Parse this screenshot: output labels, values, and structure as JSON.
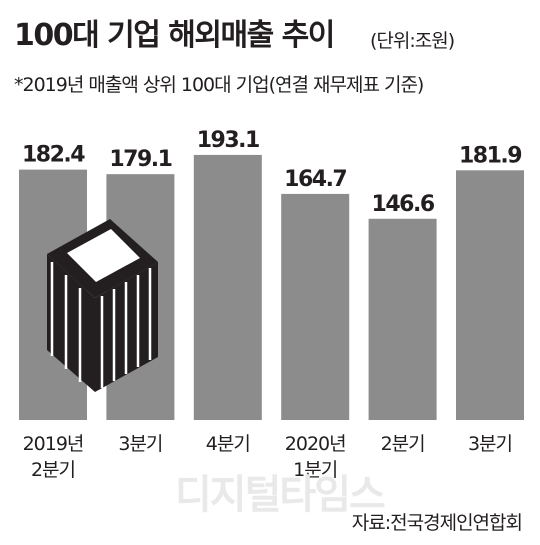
{
  "header": {
    "title": "100대 기업 해외매출 추이",
    "unit": "(단위:조원)",
    "subtitle": "*2019년 매출액 상위 100대 기업(연결 재무제표 기준)"
  },
  "footer": {
    "source": "자료:전국경제인연합회",
    "watermark": "디지털타임스"
  },
  "colors": {
    "bar": "#8c8c8c",
    "text": "#231f20",
    "icon_dark": "#231f20",
    "icon_light": "#ffffff"
  },
  "chart_data": {
    "type": "bar",
    "categories": [
      [
        "2019년",
        "2분기"
      ],
      [
        "3분기"
      ],
      [
        "4분기"
      ],
      [
        "2020년",
        "1분기"
      ],
      [
        "2분기"
      ],
      [
        "3분기"
      ]
    ],
    "values": [
      182.4,
      179.1,
      193.1,
      164.7,
      146.6,
      181.9
    ],
    "value_labels": [
      "182.4",
      "179.1",
      "193.1",
      "164.7",
      "146.6",
      "181.9"
    ],
    "title": "100대 기업 해외매출 추이",
    "ylabel": "",
    "xlabel": "",
    "grid": false,
    "legend": "none",
    "decoration": "building-icon"
  }
}
